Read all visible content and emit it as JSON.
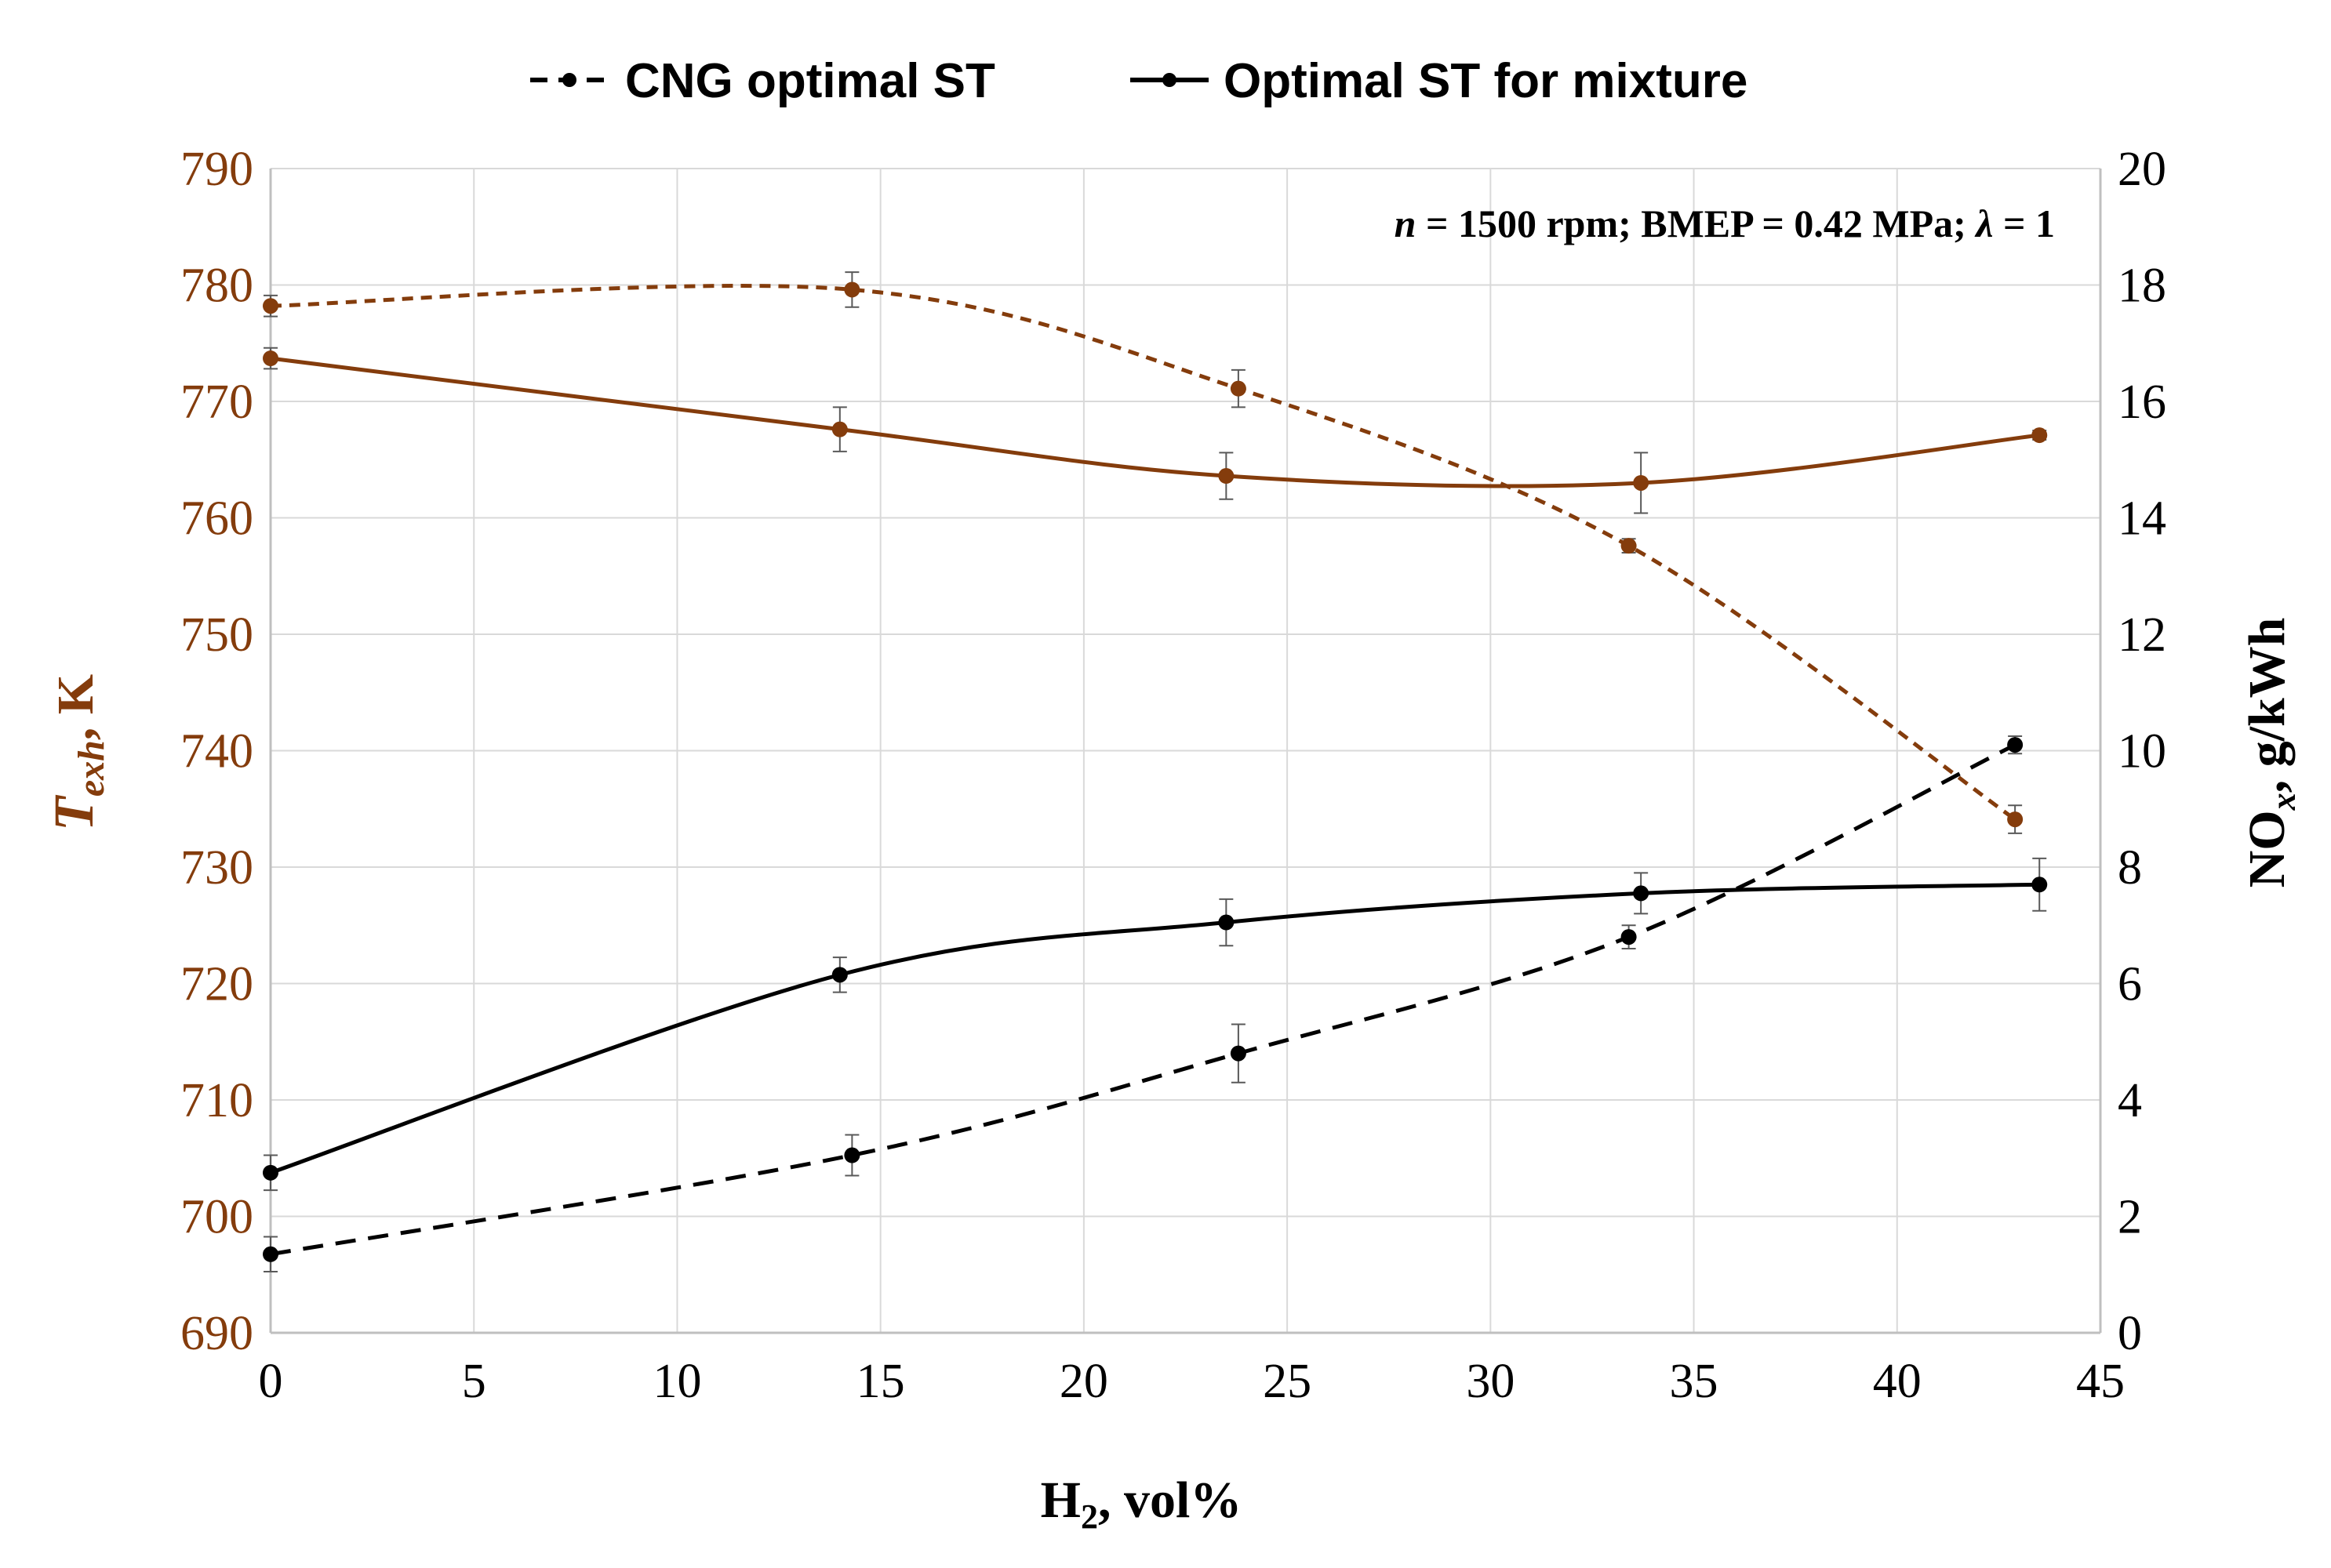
{
  "chart_data": {
    "type": "line",
    "title": "",
    "annotation": {
      "parts": [
        {
          "text": "n",
          "italic": true
        },
        {
          "text": " = 1500 rpm; BMEP = 0.42 MPa; "
        },
        {
          "text": "λ",
          "italic": true
        },
        {
          "text": " = 1"
        }
      ]
    },
    "xlabel": {
      "main": "H",
      "sub": "2",
      "rest": ", vol%"
    },
    "ylabel_left": {
      "main": "T",
      "sub": "exh",
      "rest": ", K"
    },
    "ylabel_right": {
      "main": "NO",
      "sub": "x",
      "rest": ", g/kWh"
    },
    "xlim": [
      0,
      45
    ],
    "ylim_left": [
      690,
      790
    ],
    "ylim_right": [
      0,
      20
    ],
    "x_ticks": [
      "0",
      "5",
      "10",
      "15",
      "20",
      "25",
      "30",
      "35",
      "40",
      "45"
    ],
    "y_left_ticks": [
      "690",
      "700",
      "710",
      "720",
      "730",
      "740",
      "750",
      "760",
      "770",
      "780",
      "790"
    ],
    "y_right_ticks": [
      "0",
      "2",
      "4",
      "6",
      "8",
      "10",
      "12",
      "14",
      "16",
      "18",
      "20"
    ],
    "grid": true,
    "legend": {
      "position": "top-center",
      "entries": [
        {
          "label": "CNG optimal ST",
          "dash": true
        },
        {
          "label": "Optimal ST for mixture",
          "dash": false
        }
      ]
    },
    "colors": {
      "texh": "#843C0C",
      "nox": "#000000",
      "grid": "#D9D9D9",
      "axis": "#BFBFBF",
      "errorbar": "#595959"
    },
    "series": [
      {
        "name": "Texh CNG optimal ST",
        "axis": "left",
        "color": "#843C0C",
        "dash": true,
        "x": [
          0,
          14.3,
          23.8,
          33.4,
          42.9
        ],
        "y": [
          778.2,
          779.6,
          771.1,
          757.6,
          734.1
        ],
        "err": [
          0.9,
          1.5,
          1.6,
          0.6,
          1.2
        ]
      },
      {
        "name": "Texh Optimal ST for mixture",
        "axis": "left",
        "color": "#843C0C",
        "dash": false,
        "x": [
          0,
          14,
          23.5,
          33.7,
          43.5
        ],
        "y": [
          773.7,
          767.6,
          763.6,
          763.0,
          767.1
        ],
        "err": [
          0.9,
          1.9,
          2.0,
          2.6,
          0.4
        ]
      },
      {
        "name": "NOx CNG optimal ST",
        "axis": "right",
        "color": "#000000",
        "dash": true,
        "x": [
          0,
          14.3,
          23.8,
          33.4,
          42.9
        ],
        "y": [
          1.35,
          3.05,
          4.8,
          6.8,
          10.1
        ],
        "err": [
          0.3,
          0.35,
          0.5,
          0.2,
          0.15
        ]
      },
      {
        "name": "NOx Optimal ST for mixture",
        "axis": "right",
        "color": "#000000",
        "dash": false,
        "x": [
          0,
          14,
          23.5,
          33.7,
          43.5
        ],
        "y": [
          2.75,
          6.15,
          7.05,
          7.55,
          7.7
        ],
        "err": [
          0.3,
          0.3,
          0.4,
          0.35,
          0.45
        ]
      }
    ]
  }
}
